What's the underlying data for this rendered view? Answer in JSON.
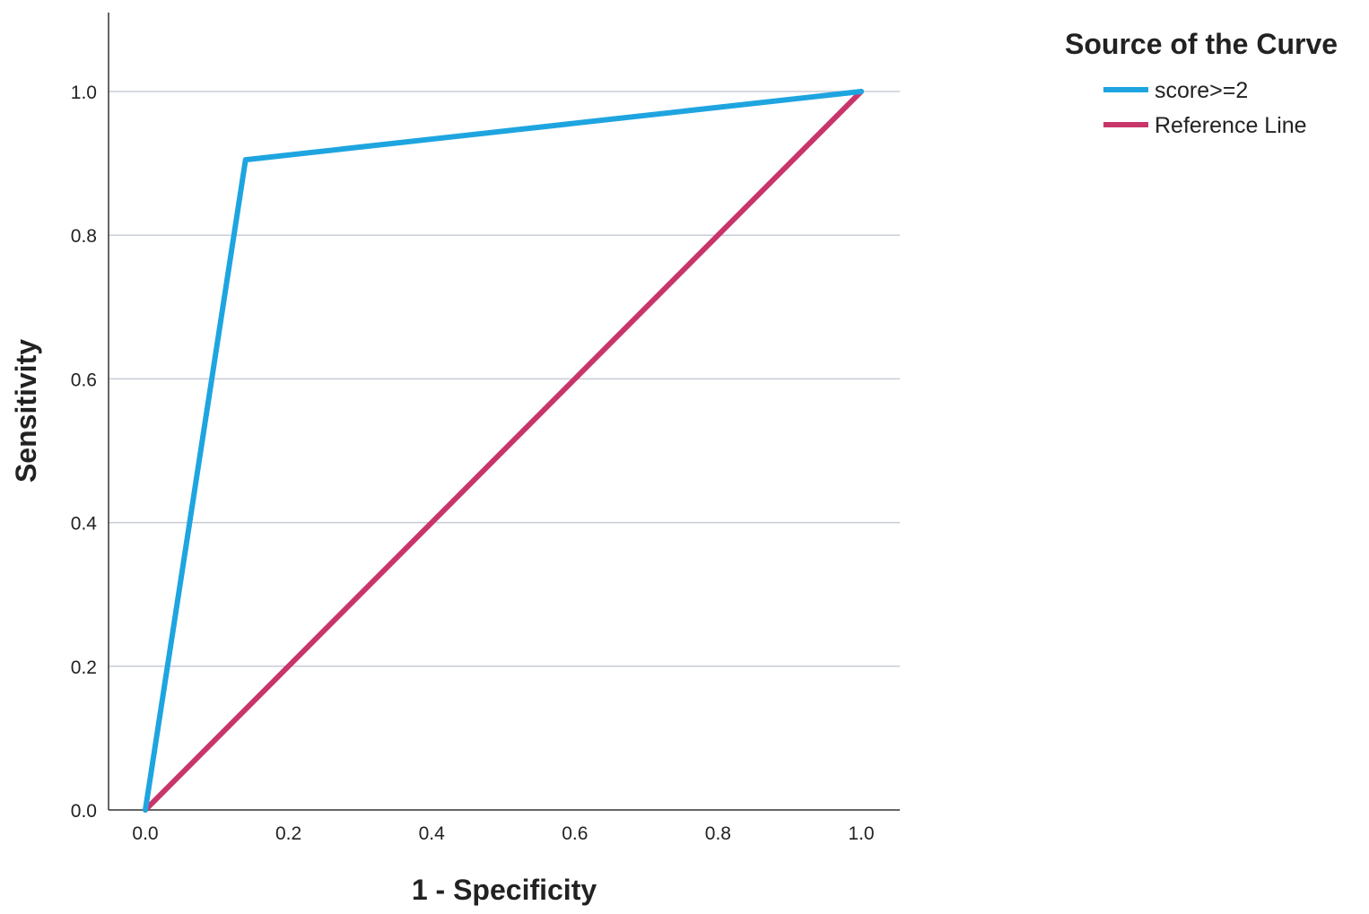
{
  "chart_data": {
    "type": "line",
    "xlabel": "1 - Specificity",
    "ylabel": "Sensitivity",
    "xlim": [
      0,
      1
    ],
    "ylim": [
      0,
      1.1
    ],
    "xticks": [
      "0.0",
      "0.2",
      "0.4",
      "0.6",
      "0.8",
      "1.0"
    ],
    "yticks": [
      "0.0",
      "0.2",
      "0.4",
      "0.6",
      "0.8",
      "1.0"
    ],
    "grid": "horizontal",
    "legend": {
      "title": "Source of the Curve",
      "placement": "top-right, outside plot"
    },
    "series": [
      {
        "name": "score>=2",
        "color": "#1ea5e0",
        "x": [
          0.0,
          0.14,
          1.0
        ],
        "y": [
          0.0,
          0.905,
          1.0
        ]
      },
      {
        "name": "Reference Line",
        "color": "#c8356b",
        "x": [
          0.0,
          1.0
        ],
        "y": [
          0.0,
          1.0
        ]
      }
    ]
  }
}
